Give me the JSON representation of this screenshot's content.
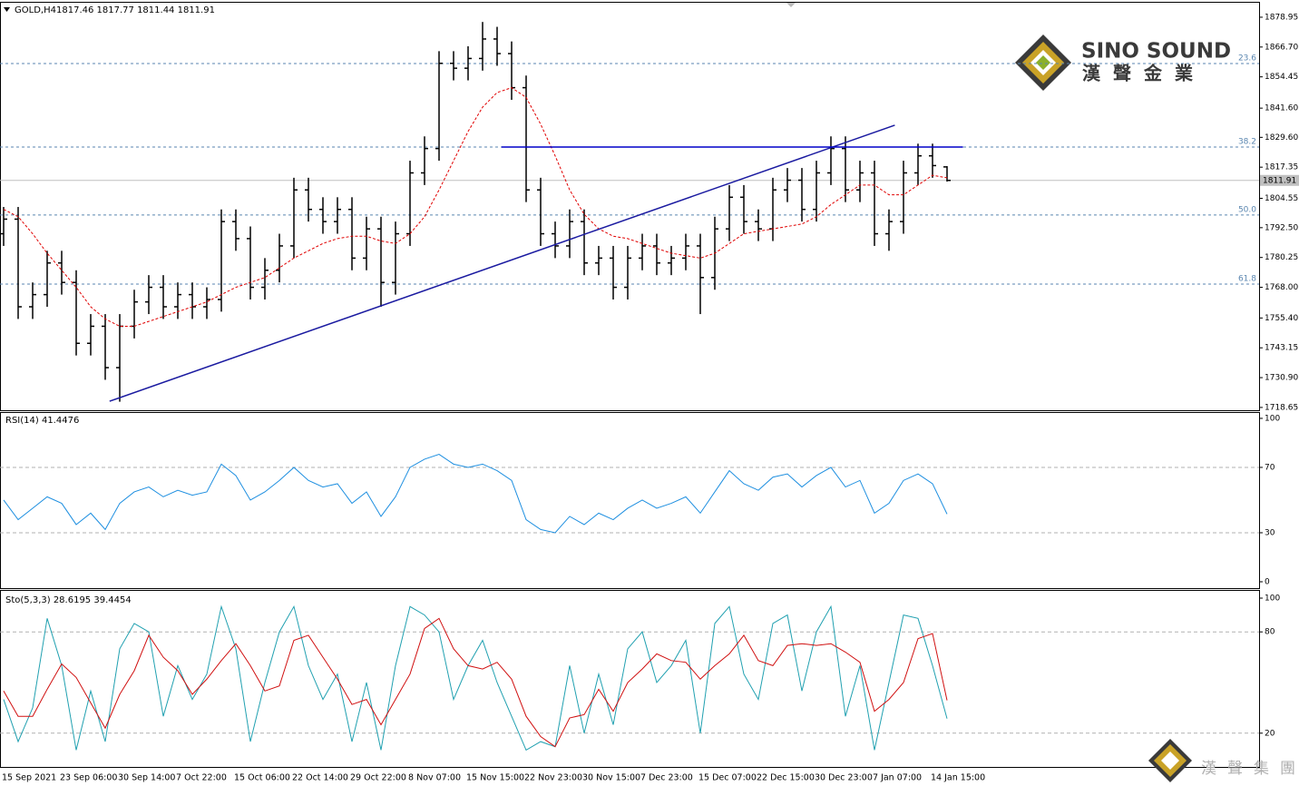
{
  "chart_data": [
    {
      "type": "ohlc",
      "title": "GOLD,H4",
      "subtitle": "1817.46 1817.77 1811.44 1811.91",
      "categories": [
        "15 Sep 2021",
        null,
        null,
        null,
        "23 Sep 06:00",
        null,
        null,
        null,
        "30 Sep 14:00",
        null,
        null,
        null,
        "7 Oct 22:00",
        null,
        null,
        null,
        "15 Oct 06:00",
        null,
        null,
        null,
        "22 Oct 14:00",
        null,
        null,
        null,
        "29 Oct 22:00",
        null,
        null,
        null,
        "8 Nov 07:00",
        null,
        null,
        null,
        "15 Nov 15:00",
        null,
        null,
        null,
        "22 Nov 23:00",
        null,
        null,
        null,
        "30 Nov 15:00",
        null,
        null,
        null,
        "7 Dec 23:00",
        null,
        null,
        null,
        "15 Dec 07:00",
        null,
        null,
        null,
        "22 Dec 15:00",
        null,
        null,
        null,
        "30 Dec 23:00",
        null,
        null,
        null,
        "7 Jan 07:00",
        null,
        null,
        null,
        "14 Jan 15:00",
        null
      ],
      "open": [
        1790,
        1796,
        1760,
        1765,
        1778,
        1770,
        1745,
        1752,
        1735,
        1752,
        1762,
        1768,
        1760,
        1765,
        1760,
        1763,
        1795,
        1788,
        1768,
        1775,
        1785,
        1808,
        1800,
        1795,
        1800,
        1780,
        1792,
        1770,
        1790,
        1815,
        1825,
        1860,
        1858,
        1862,
        1870,
        1864,
        1850,
        1808,
        1790,
        1785,
        1795,
        1778,
        1780,
        1768,
        1780,
        1785,
        1778,
        1780,
        1785,
        1772,
        1792,
        1805,
        1795,
        1792,
        1808,
        1812,
        1800,
        1815,
        1825,
        1808,
        1815,
        1790,
        1795,
        1815,
        1822,
        1817.46
      ],
      "high": [
        1801,
        1801,
        1770,
        1783,
        1783,
        1775,
        1757,
        1757,
        1757,
        1767,
        1773,
        1773,
        1770,
        1770,
        1768,
        1800,
        1800,
        1793,
        1780,
        1790,
        1813,
        1813,
        1805,
        1805,
        1805,
        1797,
        1797,
        1795,
        1820,
        1830,
        1865,
        1865,
        1867,
        1877,
        1875,
        1869,
        1855,
        1813,
        1795,
        1800,
        1800,
        1785,
        1785,
        1785,
        1790,
        1790,
        1785,
        1790,
        1790,
        1797,
        1810,
        1810,
        1800,
        1813,
        1817,
        1817,
        1820,
        1830,
        1830,
        1820,
        1820,
        1800,
        1820,
        1827,
        1827,
        1817.77
      ],
      "low": [
        1785,
        1755,
        1755,
        1760,
        1765,
        1740,
        1740,
        1730,
        1721,
        1747,
        1757,
        1755,
        1755,
        1755,
        1755,
        1758,
        1783,
        1763,
        1763,
        1770,
        1780,
        1795,
        1790,
        1790,
        1775,
        1775,
        1760,
        1765,
        1785,
        1810,
        1820,
        1853,
        1853,
        1857,
        1859,
        1845,
        1803,
        1785,
        1780,
        1780,
        1773,
        1773,
        1763,
        1763,
        1775,
        1773,
        1773,
        1775,
        1757,
        1767,
        1787,
        1790,
        1787,
        1787,
        1803,
        1795,
        1795,
        1810,
        1803,
        1803,
        1785,
        1783,
        1790,
        1810,
        1813,
        1811.44
      ],
      "close": [
        1796,
        1760,
        1765,
        1778,
        1770,
        1745,
        1752,
        1735,
        1752,
        1762,
        1768,
        1760,
        1765,
        1760,
        1763,
        1795,
        1788,
        1768,
        1775,
        1785,
        1808,
        1800,
        1795,
        1800,
        1780,
        1792,
        1770,
        1790,
        1815,
        1825,
        1860,
        1858,
        1862,
        1870,
        1864,
        1850,
        1808,
        1790,
        1785,
        1795,
        1778,
        1780,
        1768,
        1780,
        1785,
        1778,
        1780,
        1785,
        1772,
        1792,
        1805,
        1795,
        1792,
        1808,
        1812,
        1800,
        1815,
        1825,
        1808,
        1815,
        1790,
        1795,
        1815,
        1822,
        1818,
        1811.91
      ],
      "color": "#000000",
      "moving_average": {
        "color": "#e00000",
        "values": [
          1800,
          1797,
          1790,
          1782,
          1775,
          1768,
          1760,
          1755,
          1752,
          1752,
          1754,
          1756,
          1758,
          1760,
          1762,
          1765,
          1768,
          1770,
          1772,
          1776,
          1780,
          1783,
          1786,
          1788,
          1789,
          1789,
          1787,
          1786,
          1790,
          1797,
          1808,
          1820,
          1832,
          1842,
          1848,
          1850,
          1846,
          1835,
          1822,
          1808,
          1798,
          1792,
          1789,
          1788,
          1786,
          1784,
          1782,
          1781,
          1780,
          1782,
          1786,
          1790,
          1791,
          1792,
          1793,
          1794,
          1797,
          1802,
          1806,
          1810,
          1810,
          1806,
          1806,
          1810,
          1814,
          1813
        ]
      },
      "ylim": [
        1717.5,
        1884.9
      ],
      "yticks": [
        1878.95,
        {
          "value": 1866.7,
          "label": "1866.70"
        },
        1854.45,
        {
          "value": 1841.6,
          "label": "1841.60"
        },
        {
          "value": 1829.6,
          "label": "1829.60"
        },
        1817.35,
        1804.55,
        {
          "value": 1792.5,
          "label": "1792.50"
        },
        1780.25,
        {
          "value": 1768,
          "label": "1768.00"
        },
        {
          "value": 1755.4,
          "label": "1755.40"
        },
        1743.15,
        {
          "value": 1730.9,
          "label": "1730.90"
        },
        1718.65
      ],
      "last_price": 1811.91,
      "fib_levels": [
        {
          "label": "23.6",
          "price": 1859.9
        },
        {
          "label": "38.2",
          "price": 1825.6
        },
        {
          "label": "50.0",
          "price": 1797.7
        },
        {
          "label": "61.8",
          "price": 1769.3
        }
      ],
      "trendlines": [
        {
          "x": [
            7.3,
            61.4
          ],
          "y": [
            1721.2,
            1834.6
          ],
          "color": "#1a1aa0"
        },
        {
          "x": [
            34.3,
            66.1
          ],
          "y": [
            1825.6,
            1825.6
          ],
          "color": "#0000c8"
        }
      ]
    },
    {
      "type": "line",
      "title": "RSI(14) 41.4476",
      "series": [
        {
          "color": "#1e8fe0",
          "values": [
            50,
            38,
            45,
            52,
            48,
            35,
            42,
            32,
            48,
            55,
            58,
            52,
            56,
            53,
            55,
            72,
            65,
            50,
            55,
            62,
            70,
            62,
            58,
            60,
            48,
            55,
            40,
            52,
            70,
            75,
            78,
            72,
            70,
            72,
            68,
            62,
            38,
            32,
            30,
            40,
            35,
            42,
            38,
            45,
            50,
            45,
            48,
            52,
            42,
            55,
            68,
            60,
            56,
            64,
            66,
            58,
            65,
            70,
            58,
            62,
            42,
            48,
            62,
            66,
            60,
            41.4476
          ]
        }
      ],
      "ylim": [
        -3.9,
        103.3
      ],
      "yticks": [
        100,
        70,
        30,
        0
      ],
      "levels": [
        70,
        30
      ]
    },
    {
      "type": "line",
      "title": "Sto(5,3,3) 28.6195 39.4454",
      "series": [
        {
          "color": "#20a0b0",
          "values": [
            40,
            15,
            35,
            88,
            60,
            10,
            45,
            15,
            70,
            85,
            80,
            30,
            60,
            40,
            55,
            95,
            70,
            15,
            50,
            80,
            95,
            60,
            40,
            55,
            15,
            50,
            10,
            60,
            95,
            90,
            80,
            40,
            60,
            75,
            50,
            30,
            10,
            15,
            12,
            60,
            20,
            55,
            25,
            70,
            80,
            50,
            60,
            75,
            20,
            85,
            95,
            55,
            40,
            85,
            90,
            45,
            80,
            95,
            30,
            60,
            10,
            50,
            90,
            88,
            60,
            28.6195
          ]
        },
        {
          "color": "#d01010",
          "values": [
            45,
            30,
            30,
            46,
            61,
            53,
            38,
            23,
            43,
            57,
            78,
            65,
            57,
            43,
            52,
            63,
            73,
            60,
            45,
            48,
            75,
            78,
            65,
            52,
            37,
            40,
            25,
            40,
            55,
            82,
            88,
            70,
            60,
            58,
            62,
            52,
            30,
            18,
            12,
            29,
            31,
            46,
            33,
            50,
            58,
            67,
            63,
            62,
            52,
            60,
            67,
            78,
            63,
            60,
            72,
            73,
            72,
            73,
            68,
            62,
            33,
            40,
            50,
            76,
            79,
            39.4454
          ]
        }
      ],
      "ylim": [
        0,
        104.3
      ],
      "yticks": [
        100,
        80,
        20
      ],
      "levels": [
        80,
        20
      ]
    }
  ],
  "logo": {
    "name": "SINO SOUND",
    "chinese": "漢聲金業"
  },
  "footer_logo": "漢聲集團"
}
